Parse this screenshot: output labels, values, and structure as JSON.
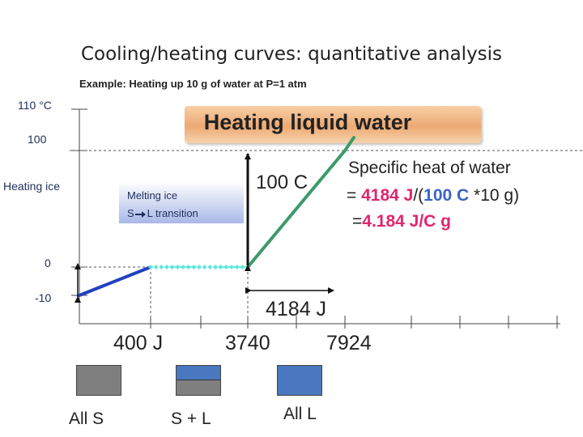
{
  "title": "Cooling/heating curves: quantitative analysis",
  "subtitle": "Example: Heating up 10 g of water at P=1 atm",
  "y_tick_labels": [
    "110 °C",
    "100",
    "0",
    "-10"
  ],
  "annotations": {
    "heating_ice": "Heating ice",
    "heating_liquid_water": "Heating liquid water",
    "melting_line1": "Melting ice",
    "melting_line2_pre": "S",
    "melting_line2_post": "L transition",
    "delta_t": "100 C",
    "energy_span": "4184 J",
    "specific_heat": {
      "line1": "Specific heat of water",
      "line2_eq": "= ",
      "line2_q": "4184 J",
      "line2_div": "/(",
      "line2_t": "100 C",
      "line2_rest": " *10 g)",
      "line3_eq": "=",
      "line3_val": "4.184 J/C g"
    }
  },
  "x_labels": [
    "400 J",
    "3740",
    "7924"
  ],
  "states": [
    "All  S",
    "S + L",
    "All L"
  ],
  "colors": {
    "ice_segment": "#2041c0",
    "melting_segment": "#5ee8dc",
    "water_segment": "#3c9a6a",
    "highlight_pink": "#e0256e",
    "highlight_blue": "#3b64c4",
    "solid": "#7f7f7f",
    "liquid": "#4a78c0",
    "banner": "#eda973"
  },
  "chart_data": {
    "type": "line",
    "title": "Cooling/heating curves: quantitative analysis",
    "xlabel": "",
    "ylabel": "",
    "series": [
      {
        "name": "Heating ice",
        "x": [
          0,
          400
        ],
        "y": [
          -10,
          0
        ]
      },
      {
        "name": "Melting ice",
        "x": [
          400,
          3740
        ],
        "y": [
          0,
          0
        ]
      },
      {
        "name": "Heating liquid water",
        "x": [
          3740,
          7924
        ],
        "y": [
          0,
          100
        ]
      }
    ],
    "x_ticks": [
      400,
      3740,
      7924
    ],
    "y_ticks": [
      -10,
      0,
      100,
      110
    ],
    "grid": false
  }
}
